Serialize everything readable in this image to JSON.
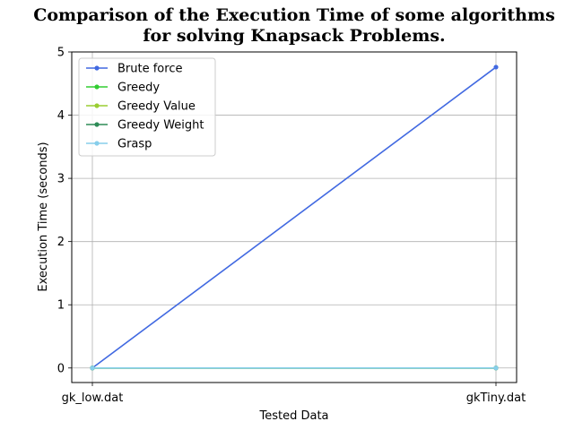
{
  "chart_data": {
    "type": "line",
    "title_lines": [
      "Comparison of the Execution Time of some algorithms",
      "for solving Knapsack Problems."
    ],
    "xlabel": "Tested Data",
    "ylabel": "Execution Time (seconds)",
    "categories": [
      "gk_low.dat",
      "gkTiny.dat"
    ],
    "ylim": [
      -0.23,
      5.0
    ],
    "yticks": [
      0,
      1,
      2,
      3,
      4,
      5
    ],
    "grid": true,
    "legend": "top-left",
    "series": [
      {
        "name": "Brute force",
        "color": "#4169e1",
        "values": [
          0.0,
          4.76
        ]
      },
      {
        "name": "Greedy",
        "color": "#32cd32",
        "values": [
          0.0,
          0.0
        ]
      },
      {
        "name": "Greedy Value",
        "color": "#9acd32",
        "values": [
          0.0,
          0.0
        ]
      },
      {
        "name": "Greedy Weight",
        "color": "#2e8b57",
        "values": [
          0.0,
          0.0
        ]
      },
      {
        "name": "Grasp",
        "color": "#87ceeb",
        "values": [
          0.0,
          0.0
        ]
      }
    ]
  }
}
